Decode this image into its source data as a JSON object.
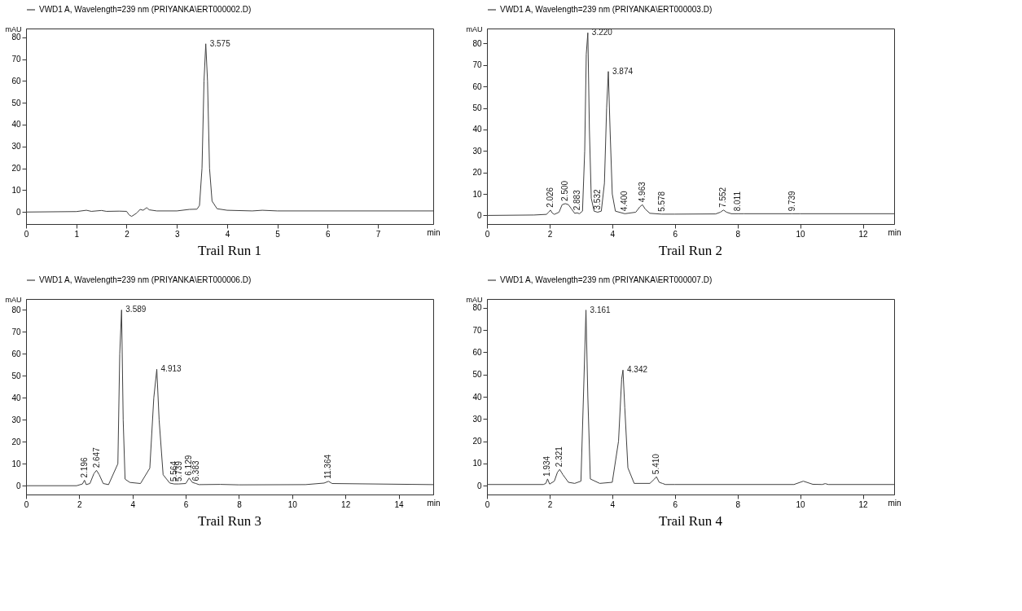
{
  "chart_data": [
    {
      "type": "line",
      "title": "Trail Run 1",
      "xlabel": "min",
      "ylabel": "mAU",
      "legend": "top",
      "grid": false,
      "x": [
        0,
        1.0,
        1.2,
        1.3,
        1.5,
        1.6,
        1.85,
        2.0,
        2.05,
        2.1,
        2.2,
        2.27,
        2.33,
        2.4,
        2.45,
        2.6,
        3.0,
        3.25,
        3.4,
        3.45,
        3.5,
        3.54,
        3.575,
        3.61,
        3.65,
        3.7,
        3.8,
        4.0,
        4.5,
        4.7,
        5.0,
        8.1
      ],
      "series": [
        {
          "name": "VWD1 A, Wavelength=239 nm (PRIYANKA\\ERT000002.D)",
          "color": "#404040",
          "values": [
            0,
            0.2,
            0.8,
            0.3,
            0.7,
            0.3,
            0.4,
            0.3,
            -1.3,
            -2,
            -0.5,
            1.2,
            0.8,
            2,
            1,
            0.5,
            0.5,
            1.2,
            1.3,
            3,
            20,
            60,
            77,
            60,
            20,
            5,
            1.5,
            0.8,
            0.5,
            0.8,
            0.5,
            0.5
          ]
        }
      ],
      "xlim": [
        0,
        8.1
      ],
      "xticks": [
        0,
        1,
        2,
        3,
        4,
        5,
        6,
        7
      ],
      "ylim": [
        -5.5,
        84
      ],
      "yticks": [
        0,
        10,
        20,
        30,
        40,
        50,
        60,
        70,
        80
      ],
      "annotations": [
        {
          "text": "3.575",
          "x": 3.575,
          "y": 77
        }
      ]
    },
    {
      "type": "line",
      "title": "Trail Run 2",
      "xlabel": "min",
      "ylabel": "mAU",
      "legend": "top",
      "grid": false,
      "x": [
        0,
        1.5,
        1.9,
        1.97,
        2.026,
        2.08,
        2.15,
        2.3,
        2.4,
        2.5,
        2.6,
        2.7,
        2.8,
        2.883,
        2.95,
        3.05,
        3.12,
        3.17,
        3.22,
        3.27,
        3.33,
        3.42,
        3.532,
        3.65,
        3.75,
        3.82,
        3.874,
        3.93,
        4.0,
        4.1,
        4.4,
        4.75,
        4.88,
        4.963,
        5.05,
        5.2,
        5.578,
        6,
        7.3,
        7.45,
        7.552,
        7.65,
        7.8,
        8.011,
        8.2,
        9.739,
        10,
        13
      ],
      "series": [
        {
          "name": "VWD1 A, Wavelength=239 nm (PRIYANKA\\ERT000003.D)",
          "color": "#404040",
          "values": [
            0,
            0.2,
            0.5,
            1.5,
            2.5,
            1.2,
            0.5,
            1.5,
            5,
            5.5,
            5,
            3,
            1,
            1.2,
            0.8,
            2,
            30,
            75,
            85,
            40,
            8,
            2,
            1.5,
            2,
            15,
            50,
            67,
            40,
            10,
            2,
            0.8,
            1.5,
            4,
            5,
            3,
            1,
            0.6,
            0.6,
            0.7,
            1.5,
            2.5,
            1.5,
            0.8,
            0.8,
            0.8,
            0.8,
            0.8,
            0.8
          ]
        }
      ],
      "xlim": [
        0,
        13
      ],
      "xticks": [
        0,
        2,
        4,
        6,
        8,
        10,
        12
      ],
      "ylim": [
        -4,
        87
      ],
      "yticks": [
        0,
        10,
        20,
        30,
        40,
        50,
        60,
        70,
        80
      ],
      "annotations": [
        {
          "text": "2.026",
          "x": 2.026,
          "y": 2.5
        },
        {
          "text": "2.500",
          "x": 2.5,
          "y": 5.5
        },
        {
          "text": "2.883",
          "x": 2.883,
          "y": 1.2
        },
        {
          "text": "3.220",
          "x": 3.22,
          "y": 85
        },
        {
          "text": "3.532",
          "x": 3.532,
          "y": 1.5
        },
        {
          "text": "3.874",
          "x": 3.874,
          "y": 67
        },
        {
          "text": "4.400",
          "x": 4.4,
          "y": 0.8
        },
        {
          "text": "4.963",
          "x": 4.963,
          "y": 5
        },
        {
          "text": "5.578",
          "x": 5.578,
          "y": 0.6
        },
        {
          "text": "7.552",
          "x": 7.552,
          "y": 2.5
        },
        {
          "text": "8.011",
          "x": 8.011,
          "y": 0.8
        },
        {
          "text": "9.739",
          "x": 9.739,
          "y": 0.8
        }
      ]
    },
    {
      "type": "line",
      "title": "Trail Run 3",
      "xlabel": "min",
      "ylabel": "mAU",
      "legend": "top",
      "grid": false,
      "x": [
        0,
        1.9,
        2.12,
        2.196,
        2.26,
        2.4,
        2.55,
        2.647,
        2.75,
        2.9,
        3.1,
        3.45,
        3.52,
        3.589,
        3.65,
        3.72,
        3.9,
        4.3,
        4.65,
        4.8,
        4.913,
        5.0,
        5.15,
        5.4,
        5.564,
        5.739,
        6.0,
        6.129,
        6.25,
        6.383,
        6.5,
        7.3,
        8,
        10.5,
        11.2,
        11.364,
        11.5,
        15.3
      ],
      "series": [
        {
          "name": "VWD1 A, Wavelength=239 nm (PRIYANKA\\ERT000006.D)",
          "color": "#404040",
          "values": [
            0,
            0,
            0.8,
            2.5,
            0.5,
            1,
            5.5,
            7,
            5,
            1,
            0.5,
            10,
            60,
            80,
            30,
            3,
            1.5,
            1,
            8,
            40,
            53,
            30,
            5,
            1.2,
            0.8,
            0.8,
            1,
            3.5,
            1.5,
            1,
            0.5,
            0.6,
            0.4,
            0.5,
            1.2,
            2,
            1,
            0.5
          ]
        }
      ],
      "xlim": [
        0,
        15.3
      ],
      "xticks": [
        0,
        2,
        4,
        6,
        8,
        10,
        12,
        14
      ],
      "ylim": [
        -4,
        85
      ],
      "yticks": [
        0,
        10,
        20,
        30,
        40,
        50,
        60,
        70,
        80
      ],
      "annotations": [
        {
          "text": "2.196",
          "x": 2.196,
          "y": 2.5
        },
        {
          "text": "2.647",
          "x": 2.647,
          "y": 7
        },
        {
          "text": "3.589",
          "x": 3.589,
          "y": 80
        },
        {
          "text": "4.913",
          "x": 4.913,
          "y": 53
        },
        {
          "text": "5.564",
          "x": 5.564,
          "y": 0.8
        },
        {
          "text": "5.739",
          "x": 5.739,
          "y": 0.8
        },
        {
          "text": "6.129",
          "x": 6.129,
          "y": 3.5
        },
        {
          "text": "6.383",
          "x": 6.383,
          "y": 1
        },
        {
          "text": "11.364",
          "x": 11.364,
          "y": 2
        }
      ]
    },
    {
      "type": "line",
      "title": "Trail Run 4",
      "xlabel": "min",
      "ylabel": "mAU",
      "legend": "top",
      "grid": false,
      "x": [
        0,
        1.8,
        1.88,
        1.934,
        2.0,
        2.15,
        2.25,
        2.321,
        2.42,
        2.6,
        2.8,
        3.0,
        3.08,
        3.161,
        3.22,
        3.3,
        3.6,
        4.0,
        4.2,
        4.3,
        4.342,
        4.4,
        4.5,
        4.7,
        5.2,
        5.35,
        5.41,
        5.5,
        5.6,
        5.7,
        6,
        9.8,
        10.1,
        10.4,
        10.7,
        10.8,
        10.9,
        13
      ],
      "series": [
        {
          "name": "VWD1 A, Wavelength=239 nm (PRIYANKA\\ERT000007.D)",
          "color": "#404040",
          "values": [
            0.5,
            0.5,
            1,
            3,
            0.7,
            2,
            6,
            7.3,
            5,
            1.5,
            1,
            2,
            40,
            79,
            40,
            3,
            1,
            1.5,
            20,
            48,
            52,
            35,
            8,
            1,
            1,
            3,
            4,
            1.5,
            1,
            0.5,
            0.5,
            0.5,
            2,
            0.6,
            0.5,
            0.9,
            0.5,
            0.5
          ]
        }
      ],
      "xlim": [
        0,
        13
      ],
      "xticks": [
        0,
        2,
        4,
        6,
        8,
        10,
        12
      ],
      "ylim": [
        -4,
        84
      ],
      "yticks": [
        0,
        10,
        20,
        30,
        40,
        50,
        60,
        70,
        80
      ],
      "annotations": [
        {
          "text": "1.934",
          "x": 1.934,
          "y": 3
        },
        {
          "text": "2.321",
          "x": 2.321,
          "y": 7.3
        },
        {
          "text": "3.161",
          "x": 3.161,
          "y": 79
        },
        {
          "text": "4.342",
          "x": 4.342,
          "y": 52
        },
        {
          "text": "5.410",
          "x": 5.41,
          "y": 4
        }
      ]
    }
  ]
}
